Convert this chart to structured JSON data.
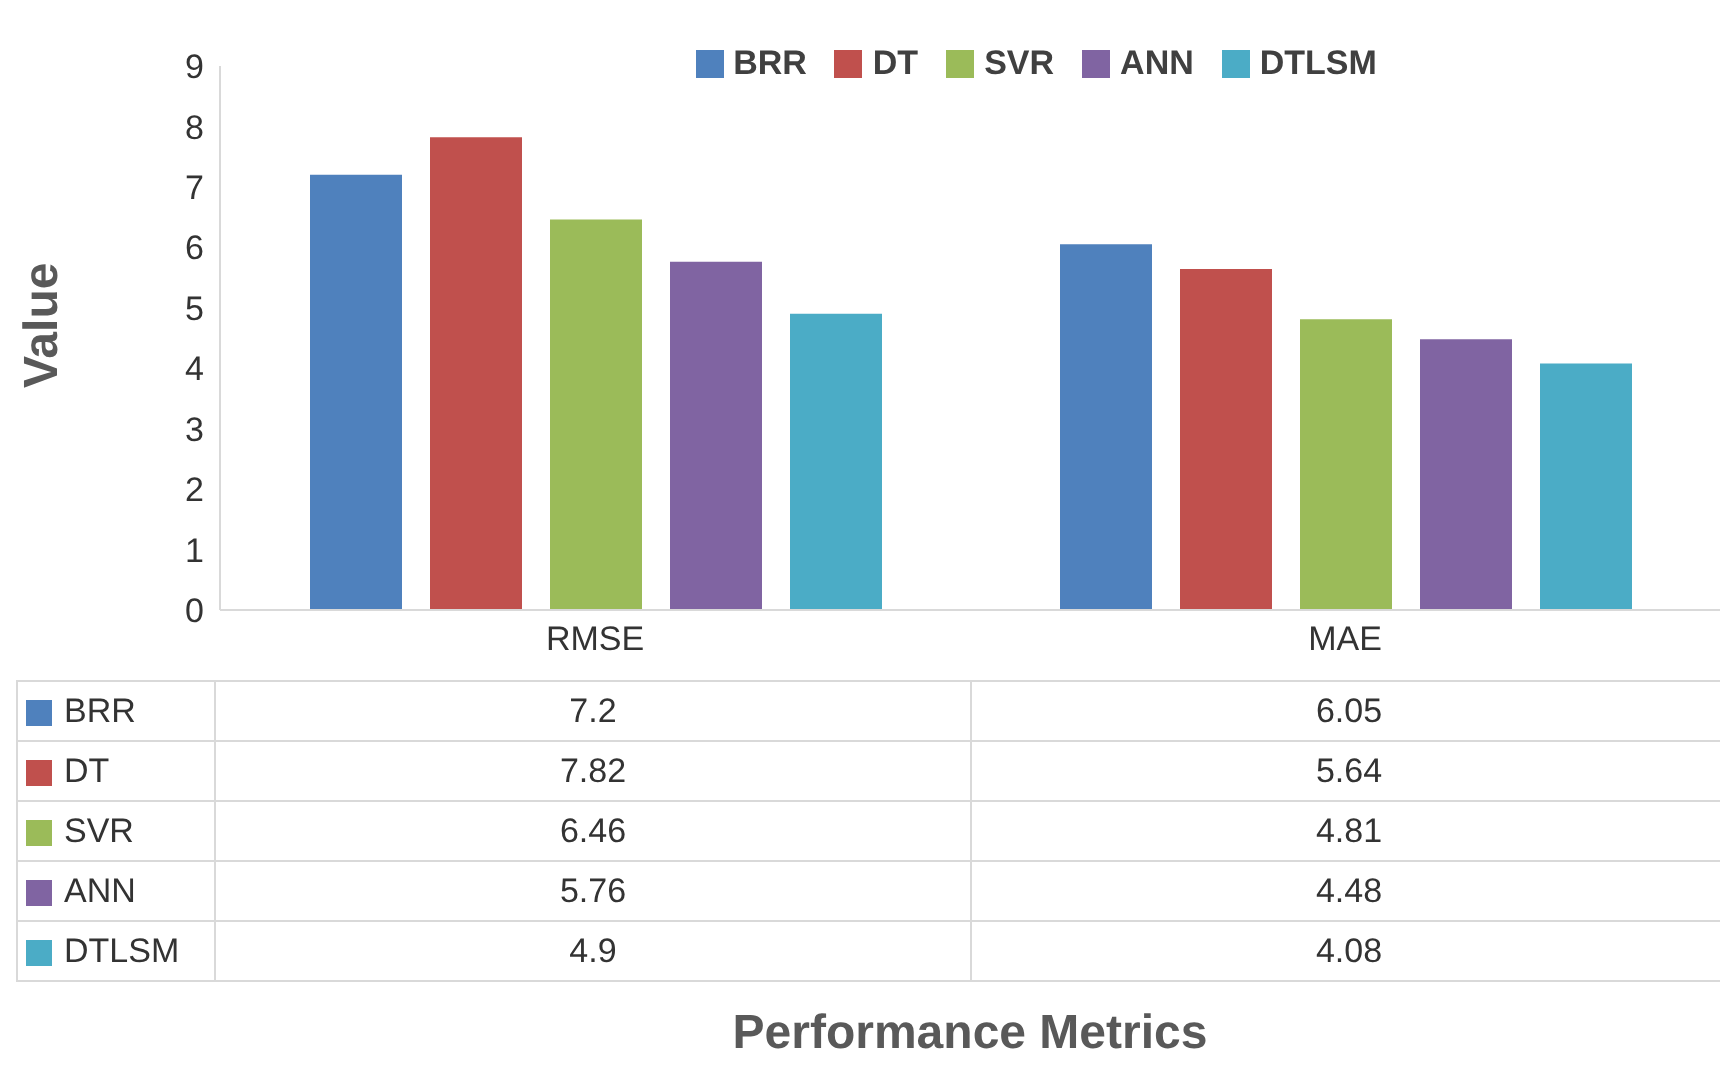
{
  "chart_data": {
    "type": "bar",
    "annotations": [
      "Performance Metrics"
    ],
    "ylabel": "Value",
    "categories": [
      "RMSE",
      "MAE"
    ],
    "series": [
      {
        "name": "BRR",
        "color": "#4f81bd",
        "values": [
          7.2,
          6.05
        ]
      },
      {
        "name": "DT",
        "color": "#c0504d",
        "values": [
          7.82,
          5.64
        ]
      },
      {
        "name": "SVR",
        "color": "#9bbb59",
        "values": [
          6.46,
          4.81
        ]
      },
      {
        "name": "ANN",
        "color": "#8064a2",
        "values": [
          5.76,
          4.48
        ]
      },
      {
        "name": "DTLSM",
        "color": "#4bacc6",
        "values": [
          4.9,
          4.08
        ]
      }
    ],
    "ylim": [
      0,
      9
    ],
    "yticks": [
      0,
      1,
      2,
      3,
      4,
      5,
      6,
      7,
      8,
      9
    ],
    "grid": false,
    "legend": "top",
    "data_labels": true
  }
}
